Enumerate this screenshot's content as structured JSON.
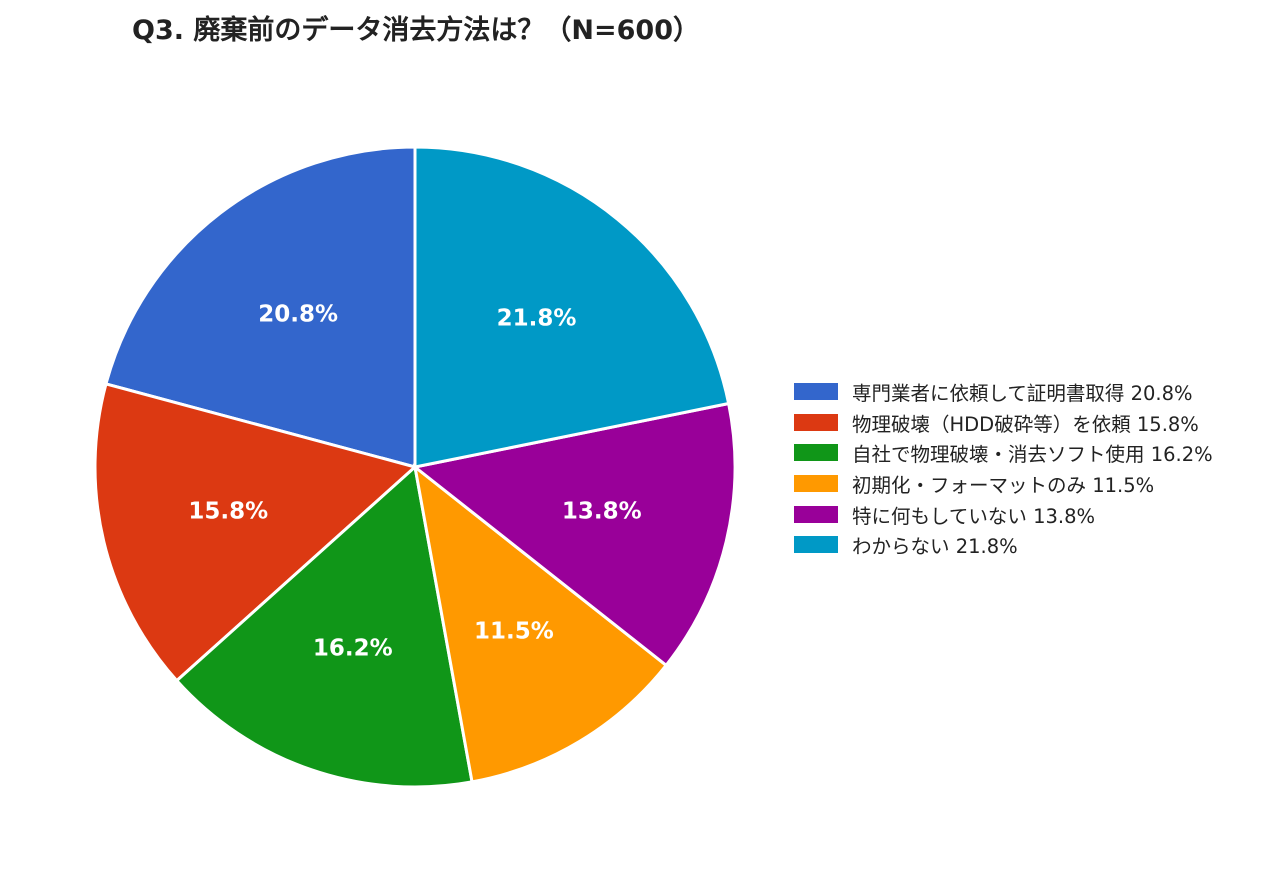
{
  "chart_data": {
    "type": "pie",
    "title": "Q3. 廃棄前のデータ消去方法は？（N=600）",
    "slices": [
      {
        "label": "専門業者に依頼して証明書取得",
        "value": 20.8,
        "display": "20.8%",
        "color": "#3366cc"
      },
      {
        "label": "物理破壊（HDD破砕等）を依頼",
        "value": 15.8,
        "display": "15.8%",
        "color": "#dc3912"
      },
      {
        "label": "自社で物理破壊・消去ソフト使用",
        "value": 16.2,
        "display": "16.2%",
        "color": "#109618"
      },
      {
        "label": "初期化・フォーマットのみ",
        "value": 11.5,
        "display": "11.5%",
        "color": "#ff9900"
      },
      {
        "label": "特に何もしていない",
        "value": 13.8,
        "display": "13.8%",
        "color": "#990099"
      },
      {
        "label": "わからない",
        "value": 21.8,
        "display": "21.8%",
        "color": "#0099c6"
      }
    ],
    "legend_position": "right",
    "drawing_order": "counter-clockwise from top"
  }
}
